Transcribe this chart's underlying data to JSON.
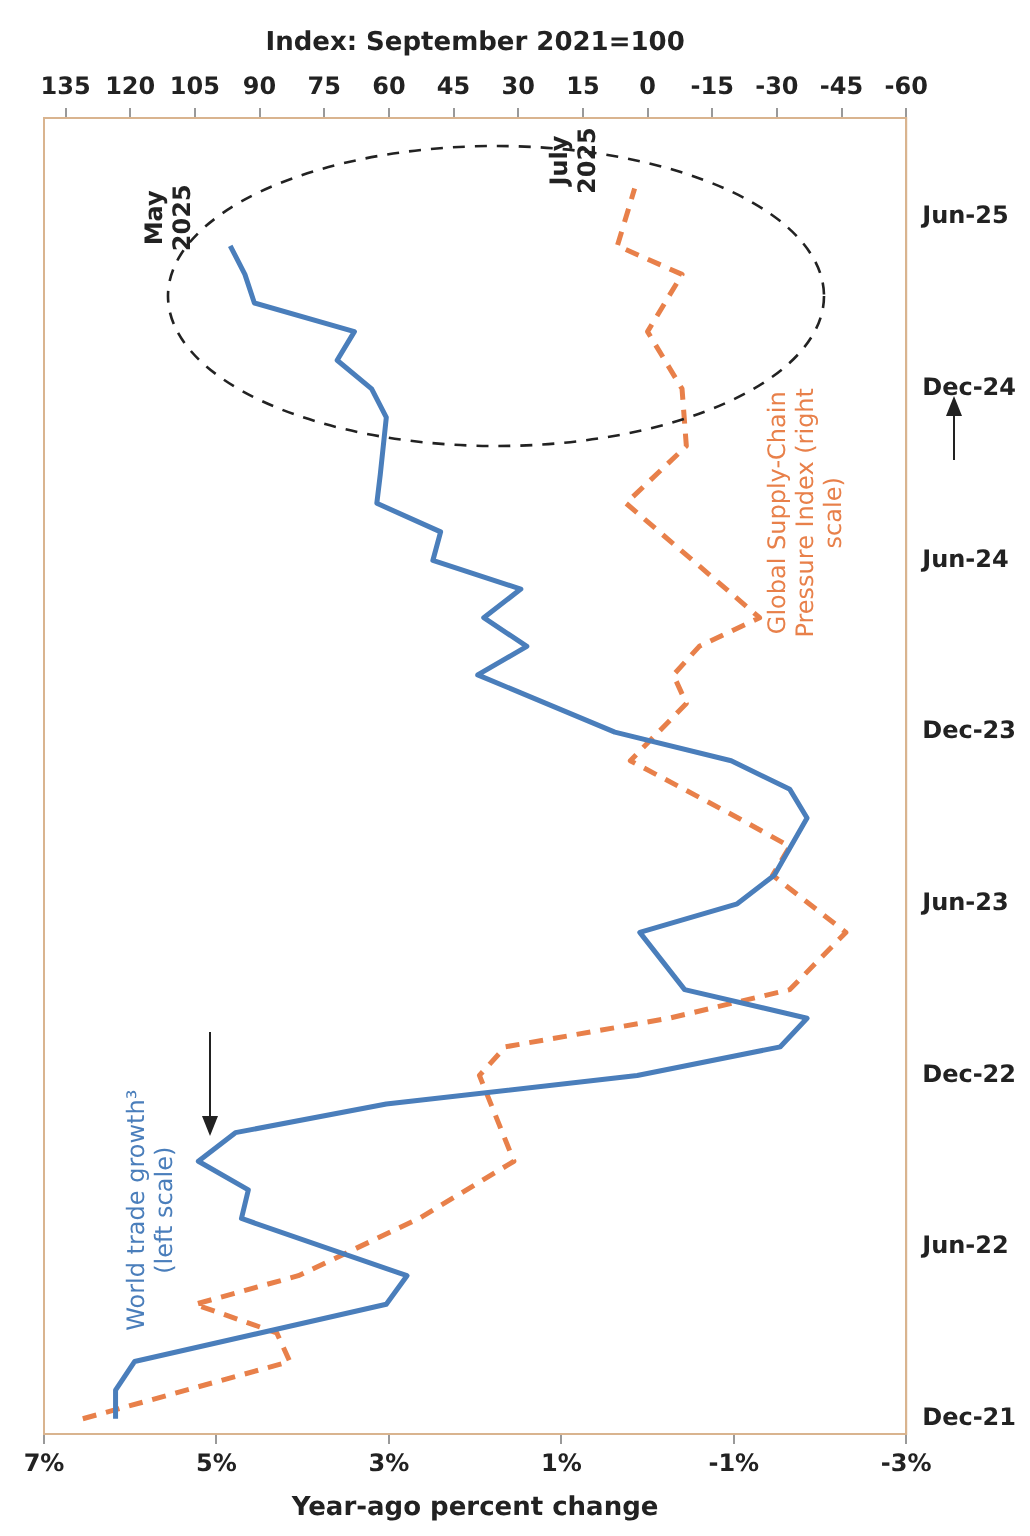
{
  "chart_data": {
    "type": "line",
    "orientation": "horizontal",
    "xlabel": "Year-ago percent change",
    "x2label": "Index: September 2021=100",
    "annotations": [
      "May 2025",
      "July 2025"
    ],
    "xlim": [
      7,
      -3
    ],
    "xticks": [
      {
        "value": 7,
        "label": "7%"
      },
      {
        "value": 5,
        "label": "5%"
      },
      {
        "value": 3,
        "label": "3%"
      },
      {
        "value": 1,
        "label": "1%"
      },
      {
        "value": -1,
        "label": "-1%"
      },
      {
        "value": -3,
        "label": "-3%"
      }
    ],
    "x2lim": [
      140,
      -60
    ],
    "x2ticks": [
      135,
      120,
      105,
      90,
      75,
      60,
      45,
      30,
      15,
      0,
      -15,
      -30,
      -45,
      -60
    ],
    "ylim": [
      "2021-11-15",
      "2025-09-15"
    ],
    "yticks": [
      {
        "value": "2021-12",
        "label": "Dec-21"
      },
      {
        "value": "2022-06",
        "label": "Jun-22"
      },
      {
        "value": "2022-12",
        "label": "Dec-22"
      },
      {
        "value": "2023-06",
        "label": "Jun-23"
      },
      {
        "value": "2023-12",
        "label": "Dec-23"
      },
      {
        "value": "2024-06",
        "label": "Jun-24"
      },
      {
        "value": "2024-12",
        "label": "Dec-24"
      },
      {
        "value": "2025-06",
        "label": "Jun-25"
      }
    ],
    "grid": false,
    "legend": false,
    "marker": "none",
    "series": [
      {
        "name": "World trade growth³ (left scale)",
        "color": "#4a7ebb",
        "line_style": "solid",
        "x": [
          "2021-12",
          "2022-01",
          "2022-02",
          "2022-04",
          "2022-05",
          "2022-07",
          "2022-08",
          "2022-09",
          "2022-10",
          "2022-11",
          "2022-12",
          "2023-01",
          "2023-02",
          "2023-03",
          "2023-05",
          "2023-06",
          "2023-07",
          "2023-09",
          "2023-10",
          "2023-11",
          "2023-12",
          "2024-02",
          "2024-03",
          "2024-04",
          "2024-05",
          "2024-06",
          "2024-07",
          "2024-08",
          "2024-09",
          "2024-11",
          "2024-12",
          "2025-01",
          "2025-02",
          "2025-03",
          "2025-04",
          "2025-05"
        ],
        "values": [
          6.17,
          6.17,
          5.95,
          3.03,
          2.79,
          4.71,
          4.63,
          5.21,
          4.78,
          3.03,
          0.12,
          -1.54,
          -1.85,
          -0.43,
          0.09,
          -1.04,
          -1.47,
          -1.85,
          -1.65,
          -0.97,
          0.38,
          1.97,
          1.4,
          1.9,
          1.47,
          2.49,
          2.4,
          3.14,
          3.1,
          3.03,
          3.2,
          3.6,
          3.4,
          4.56,
          4.67,
          4.84
        ]
      },
      {
        "name": "Global Supply-Chain Pressure Index (right scale)",
        "color": "#e8804a",
        "line_style": "dashed",
        "axis": "x2",
        "x": [
          "2021-12",
          "2022-02",
          "2022-03",
          "2022-04",
          "2022-05",
          "2022-07",
          "2022-09",
          "2022-12",
          "2023-01",
          "2023-02",
          "2023-03",
          "2023-05",
          "2023-07",
          "2023-08",
          "2023-09",
          "2023-11",
          "2024-01",
          "2024-02",
          "2024-03",
          "2024-04",
          "2024-08",
          "2024-10",
          "2024-12",
          "2025-02",
          "2025-04",
          "2025-05",
          "2025-07"
        ],
        "values": [
          131,
          83,
          86,
          105,
          81,
          53,
          31,
          39,
          33,
          -5,
          -33,
          -46,
          -29,
          -33,
          -21,
          4,
          -9,
          -6,
          -12,
          -26,
          5,
          -9,
          -8,
          0,
          -8,
          7,
          3
        ]
      }
    ]
  }
}
